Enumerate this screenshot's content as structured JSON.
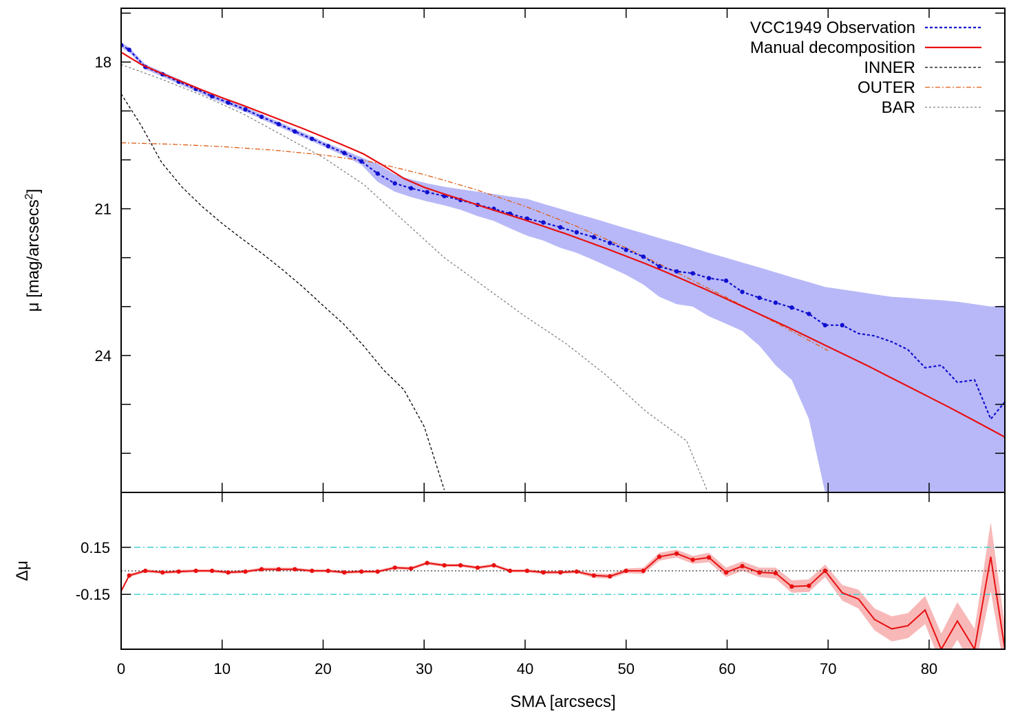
{
  "chart_data": [
    {
      "type": "line",
      "ylabel_main": "μ [mag/arcsecs",
      "ylabel_sup": "2",
      "ylabel_tail": "]",
      "xlim": [
        0,
        87.5
      ],
      "ylim": [
        16.9,
        26.8
      ],
      "y_inverted": true,
      "yticks": [
        18,
        21,
        24
      ],
      "legend_position": "top-right",
      "grid": false,
      "colors": {
        "observation": "#1010d0",
        "observation_band": "#b8b8f8",
        "model": "#e81010",
        "inner": "#000000",
        "outer": "#e05a10",
        "bar": "#808080"
      },
      "series": [
        {
          "name": "VCC1949 Observation",
          "x": [
            0,
            0.8,
            2.4,
            4.1,
            5.7,
            7.4,
            9.0,
            10.6,
            12.3,
            13.9,
            15.6,
            17.2,
            18.9,
            20.5,
            22.1,
            23.8,
            25.4,
            27.1,
            28.7,
            30.3,
            32.0,
            33.6,
            35.3,
            36.9,
            38.5,
            40.2,
            41.8,
            43.5,
            45.1,
            46.8,
            48.4,
            50.0,
            51.7,
            53.3,
            55.0,
            56.6,
            58.2,
            59.9,
            61.5,
            63.2,
            64.8,
            66.4,
            68.1,
            69.7,
            71.4,
            73.0,
            74.6,
            76.3,
            77.9,
            79.6,
            81.2,
            82.8,
            84.5,
            86.1,
            87.5
          ],
          "y": [
            17.65,
            17.75,
            18.1,
            18.25,
            18.4,
            18.55,
            18.7,
            18.83,
            18.97,
            19.12,
            19.27,
            19.42,
            19.57,
            19.72,
            19.86,
            20.03,
            20.28,
            20.48,
            20.58,
            20.66,
            20.74,
            20.82,
            20.92,
            21.0,
            21.1,
            21.2,
            21.28,
            21.38,
            21.48,
            21.58,
            21.7,
            21.84,
            21.98,
            22.18,
            22.28,
            22.32,
            22.42,
            22.47,
            22.7,
            22.82,
            22.92,
            23.02,
            23.15,
            23.38,
            23.38,
            23.55,
            23.6,
            23.72,
            23.88,
            24.25,
            24.2,
            24.55,
            24.5,
            25.3,
            24.95
          ],
          "band_upper": [
            17.6,
            17.7,
            18.05,
            18.2,
            18.35,
            18.5,
            18.65,
            18.78,
            18.92,
            19.07,
            19.22,
            19.37,
            19.52,
            19.67,
            19.8,
            19.95,
            20.08,
            20.3,
            20.4,
            20.48,
            20.55,
            20.6,
            20.65,
            20.7,
            20.75,
            20.8,
            20.9,
            21.0,
            21.1,
            21.2,
            21.3,
            21.4,
            21.5,
            21.6,
            21.7,
            21.8,
            21.9,
            22.0,
            22.1,
            22.2,
            22.3,
            22.4,
            22.5,
            22.6,
            22.65,
            22.7,
            22.75,
            22.8,
            22.82,
            22.85,
            22.87,
            22.9,
            22.95,
            23.0,
            22.98
          ],
          "band_lower": [
            17.7,
            17.8,
            18.15,
            18.3,
            18.45,
            18.6,
            18.75,
            18.88,
            19.02,
            19.17,
            19.32,
            19.47,
            19.62,
            19.77,
            19.92,
            20.1,
            20.45,
            20.65,
            20.76,
            20.85,
            20.93,
            21.02,
            21.15,
            21.25,
            21.4,
            21.55,
            21.65,
            21.8,
            21.9,
            22.05,
            22.2,
            22.35,
            22.55,
            22.8,
            22.95,
            23.0,
            23.2,
            23.35,
            23.5,
            23.8,
            24.2,
            24.5,
            25.3,
            26.8,
            26.8,
            26.8,
            26.8,
            26.8,
            26.8,
            26.8,
            26.8,
            26.8,
            26.8,
            26.8,
            26.8
          ]
        },
        {
          "name": "Manual decomposition",
          "x": [
            0,
            2,
            4,
            6,
            8,
            10,
            12,
            14,
            16,
            18,
            20,
            22,
            24,
            26,
            28,
            30,
            32,
            34,
            36,
            38,
            40,
            42,
            44,
            46,
            48,
            50,
            52,
            54,
            56,
            58,
            60,
            62,
            64,
            66,
            68,
            70,
            72,
            74,
            76,
            78,
            80,
            82,
            84,
            86,
            87.5
          ],
          "y": [
            17.8,
            18.05,
            18.23,
            18.4,
            18.57,
            18.73,
            18.88,
            19.04,
            19.2,
            19.36,
            19.53,
            19.7,
            19.88,
            20.12,
            20.38,
            20.56,
            20.7,
            20.83,
            20.97,
            21.1,
            21.23,
            21.37,
            21.51,
            21.66,
            21.81,
            21.97,
            22.13,
            22.3,
            22.48,
            22.66,
            22.85,
            23.04,
            23.23,
            23.42,
            23.62,
            23.82,
            24.02,
            24.22,
            24.43,
            24.64,
            24.85,
            25.06,
            25.28,
            25.5,
            25.67
          ]
        },
        {
          "name": "INNER",
          "x": [
            0,
            2,
            4,
            6,
            8,
            10,
            12,
            14,
            16,
            18,
            20,
            22,
            24,
            26,
            28,
            30,
            32
          ],
          "y": [
            18.65,
            19.3,
            20.05,
            20.55,
            20.95,
            21.3,
            21.62,
            21.92,
            22.25,
            22.6,
            22.98,
            23.35,
            23.8,
            24.3,
            24.7,
            25.45,
            26.75
          ]
        },
        {
          "name": "OUTER",
          "x": [
            0,
            5,
            10,
            15,
            20,
            25,
            30,
            35,
            40,
            45,
            50,
            55,
            60,
            65,
            70
          ],
          "y": [
            19.65,
            19.68,
            19.73,
            19.8,
            19.9,
            20.05,
            20.3,
            20.6,
            20.95,
            21.35,
            21.8,
            22.3,
            22.82,
            23.35,
            23.9
          ]
        },
        {
          "name": "BAR",
          "x": [
            0,
            4,
            8,
            12,
            16,
            20,
            24,
            28,
            32,
            36,
            40,
            44,
            48,
            52,
            56,
            58
          ],
          "y": [
            18.05,
            18.35,
            18.68,
            19.05,
            19.5,
            19.95,
            20.5,
            21.25,
            22.0,
            22.6,
            23.2,
            23.75,
            24.4,
            25.15,
            25.75,
            26.75
          ]
        }
      ]
    },
    {
      "type": "line",
      "ylabel": "Δμ",
      "xlabel": "SMA [arcsecs]",
      "xlim": [
        0,
        87.5
      ],
      "ylim": [
        -0.5,
        0.5
      ],
      "yticks": [
        0.15,
        -0.15
      ],
      "ytick_labels": [
        "0.15",
        "-0.15"
      ],
      "xticks": [
        0,
        10,
        20,
        30,
        40,
        50,
        60,
        70,
        80
      ],
      "reference_lines": [
        0.15,
        -0.15,
        0
      ],
      "colors": {
        "residual": "#e81010",
        "residual_band": "#f8b8b8",
        "threshold": "#40d0d0",
        "zero": "#000000"
      },
      "series": [
        {
          "name": "residual",
          "x": [
            0,
            0.8,
            2.4,
            4.1,
            5.7,
            7.4,
            9.0,
            10.6,
            12.3,
            13.9,
            15.6,
            17.2,
            18.9,
            20.5,
            22.1,
            23.8,
            25.4,
            27.1,
            28.7,
            30.3,
            32.0,
            33.6,
            35.3,
            36.9,
            38.5,
            40.2,
            41.8,
            43.5,
            45.1,
            46.8,
            48.4,
            50.0,
            51.7,
            53.3,
            55.0,
            56.6,
            58.2,
            59.9,
            61.5,
            63.2,
            64.8,
            66.4,
            68.1,
            69.7,
            71.4,
            73.0,
            74.6,
            76.3,
            77.9,
            79.6,
            81.2,
            82.8,
            84.5,
            86.1,
            87.5
          ],
          "y": [
            -0.13,
            -0.03,
            0.0,
            -0.01,
            -0.005,
            0.0,
            0.0,
            -0.01,
            -0.005,
            0.01,
            0.01,
            0.01,
            0.0,
            0.0,
            -0.01,
            -0.005,
            -0.005,
            0.02,
            0.015,
            0.05,
            0.035,
            0.035,
            0.02,
            0.035,
            0.0,
            0.0,
            -0.01,
            -0.01,
            -0.005,
            -0.03,
            -0.035,
            0.0,
            0.0,
            0.09,
            0.11,
            0.07,
            0.085,
            -0.01,
            0.03,
            -0.01,
            -0.015,
            -0.1,
            -0.095,
            0.0,
            -0.14,
            -0.18,
            -0.31,
            -0.37,
            -0.35,
            -0.25,
            -0.5,
            -0.32,
            -0.5,
            0.09,
            -0.5
          ],
          "band_half_width": [
            0.01,
            0.01,
            0.01,
            0.01,
            0.01,
            0.01,
            0.01,
            0.01,
            0.01,
            0.01,
            0.01,
            0.01,
            0.01,
            0.01,
            0.01,
            0.01,
            0.01,
            0.01,
            0.01,
            0.01,
            0.01,
            0.01,
            0.01,
            0.01,
            0.01,
            0.01,
            0.01,
            0.01,
            0.01,
            0.015,
            0.015,
            0.015,
            0.02,
            0.025,
            0.025,
            0.025,
            0.03,
            0.03,
            0.03,
            0.03,
            0.035,
            0.04,
            0.04,
            0.04,
            0.05,
            0.06,
            0.07,
            0.08,
            0.08,
            0.09,
            0.1,
            0.12,
            0.13,
            0.22,
            0.15
          ]
        }
      ]
    }
  ]
}
